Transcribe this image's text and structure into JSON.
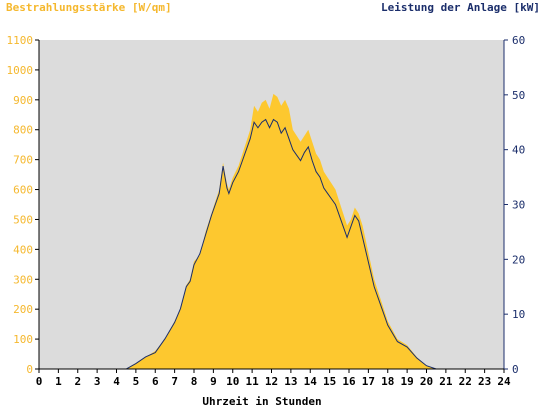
{
  "chart_data": {
    "type": "area",
    "ylabel_left": "Bestrahlungsstärke [W/qm]",
    "ylabel_right": "Leistung der Anlage [kW]",
    "xlabel": "Uhrzeit in Stunden",
    "xlim": [
      0,
      24
    ],
    "ylim_left": [
      0,
      1100
    ],
    "ylim_right": [
      0,
      60
    ],
    "x_ticks": [
      "0",
      "1",
      "2",
      "3",
      "4",
      "5",
      "6",
      "7",
      "8",
      "9",
      "10",
      "11",
      "12",
      "13",
      "14",
      "15",
      "16",
      "17",
      "18",
      "19",
      "20",
      "21",
      "22",
      "23",
      "24"
    ],
    "y_left_ticks": [
      "0",
      "100",
      "200",
      "300",
      "400",
      "500",
      "600",
      "700",
      "800",
      "900",
      "1000",
      "1100"
    ],
    "y_right_ticks": [
      "0",
      "10",
      "20",
      "30",
      "40",
      "50",
      "60"
    ],
    "grid": false,
    "colors": {
      "plot_background": "#dcdcdc",
      "irradiance_fill": "#fdc82f",
      "power_line": "#1b2e6b",
      "left_axis_text": "#f5b82e",
      "right_axis_text": "#1b2e6b"
    },
    "series": [
      {
        "name": "Bestrahlungsstärke [W/qm]",
        "axis": "left",
        "x": [
          0,
          4.5,
          5,
          5.5,
          6,
          6.5,
          7,
          7.3,
          7.6,
          7.8,
          8,
          8.3,
          8.6,
          8.9,
          9.1,
          9.3,
          9.5,
          9.7,
          9.8,
          10,
          10.3,
          10.5,
          10.7,
          10.9,
          11.1,
          11.3,
          11.5,
          11.7,
          11.9,
          12.1,
          12.3,
          12.5,
          12.7,
          12.9,
          13.1,
          13.3,
          13.5,
          13.7,
          13.9,
          14.1,
          14.3,
          14.5,
          14.7,
          14.9,
          15.1,
          15.3,
          15.5,
          15.7,
          15.9,
          16.1,
          16.3,
          16.5,
          16.7,
          16.9,
          17.1,
          17.3,
          17.6,
          18,
          18.5,
          19,
          19.5,
          20,
          20.5,
          21,
          24
        ],
        "values": [
          0,
          0,
          20,
          40,
          60,
          100,
          160,
          200,
          280,
          300,
          360,
          380,
          460,
          520,
          560,
          600,
          690,
          620,
          600,
          640,
          680,
          720,
          760,
          800,
          880,
          860,
          890,
          900,
          870,
          920,
          910,
          880,
          900,
          870,
          800,
          780,
          760,
          780,
          800,
          760,
          720,
          700,
          660,
          640,
          620,
          600,
          560,
          520,
          480,
          500,
          540,
          520,
          480,
          420,
          360,
          300,
          240,
          160,
          100,
          80,
          40,
          10,
          0,
          0,
          0
        ]
      },
      {
        "name": "Leistung der Anlage [kW]",
        "axis": "right",
        "x": [
          0,
          4.5,
          5,
          5.5,
          6,
          6.5,
          7,
          7.3,
          7.6,
          7.8,
          8,
          8.3,
          8.6,
          8.9,
          9.1,
          9.3,
          9.5,
          9.7,
          9.8,
          10,
          10.3,
          10.5,
          10.7,
          10.9,
          11.1,
          11.3,
          11.5,
          11.7,
          11.9,
          12.1,
          12.3,
          12.5,
          12.7,
          12.9,
          13.1,
          13.3,
          13.5,
          13.7,
          13.9,
          14.1,
          14.3,
          14.5,
          14.7,
          14.9,
          15.1,
          15.3,
          15.5,
          15.7,
          15.9,
          16.1,
          16.3,
          16.5,
          16.7,
          16.9,
          17.1,
          17.3,
          17.6,
          18,
          18.5,
          19,
          19.5,
          20,
          20.5,
          21,
          24
        ],
        "values": [
          0,
          0,
          1,
          2.2,
          3,
          5.5,
          8.5,
          11,
          15,
          16,
          19,
          21,
          24.5,
          28,
          30,
          32,
          37,
          33,
          32,
          34,
          36,
          38,
          40,
          42,
          45,
          44,
          45,
          45.5,
          44,
          45.5,
          45,
          43,
          44,
          42,
          40,
          39,
          38,
          39.5,
          40.5,
          38,
          36,
          35,
          33,
          32,
          31,
          30,
          28,
          26,
          24,
          26,
          28,
          27,
          24,
          21,
          18,
          15,
          12,
          8,
          5,
          4,
          2,
          0.6,
          0,
          0,
          0
        ]
      }
    ]
  }
}
